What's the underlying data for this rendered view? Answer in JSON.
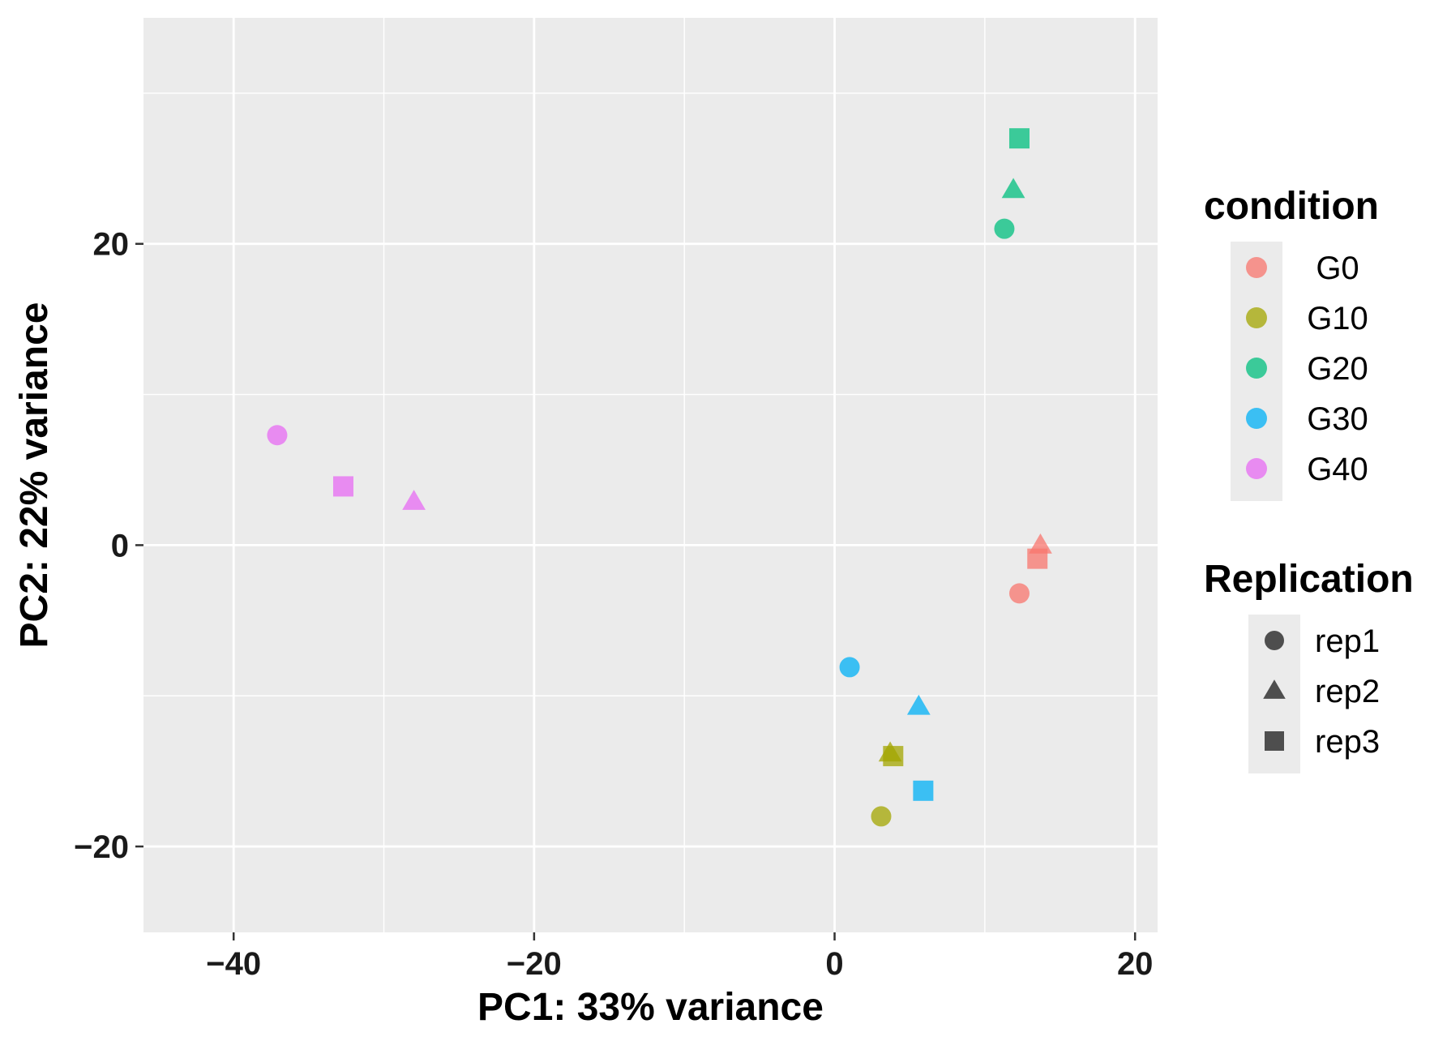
{
  "chart_data": {
    "type": "scatter",
    "title": "",
    "xlabel": "PC1: 33% variance",
    "ylabel": "PC2: 22% variance",
    "xlim": [
      -46,
      21.5
    ],
    "ylim": [
      -25.7,
      35
    ],
    "x_major_ticks": [
      -40,
      -20,
      0,
      20
    ],
    "x_minor_ticks": [
      -30,
      -10,
      10
    ],
    "y_major_ticks": [
      -20,
      0,
      20
    ],
    "y_minor_ticks": [
      -10,
      10,
      30
    ],
    "x_tick_labels": [
      "−40",
      "−20",
      "0",
      "20"
    ],
    "y_tick_labels": [
      "−20",
      "0",
      "20"
    ],
    "grid": true,
    "legend_position": "right",
    "point_alpha": 0.75,
    "conditions": [
      {
        "name": "G0",
        "label": "G0",
        "color": "#F8766D"
      },
      {
        "name": "G10",
        "label": "G10",
        "color": "#A3A500"
      },
      {
        "name": "G20",
        "label": "G20",
        "color": "#00BF7D"
      },
      {
        "name": "G30",
        "label": "G30",
        "color": "#00B0F6"
      },
      {
        "name": "G40",
        "label": "G40",
        "color": "#E76BF3"
      }
    ],
    "replications": [
      {
        "name": "rep1",
        "label": "rep1",
        "shape": "circle"
      },
      {
        "name": "rep2",
        "label": "rep2",
        "shape": "triangle"
      },
      {
        "name": "rep3",
        "label": "rep3",
        "shape": "square"
      }
    ],
    "legend": {
      "condition_title": "condition",
      "replication_title": "Replication"
    },
    "points": [
      {
        "x": 12.3,
        "y": -3.2,
        "condition": "G0",
        "rep": "rep1"
      },
      {
        "x": 13.7,
        "y": 0.0,
        "condition": "G0",
        "rep": "rep2"
      },
      {
        "x": 13.5,
        "y": -0.9,
        "condition": "G0",
        "rep": "rep3"
      },
      {
        "x": 3.1,
        "y": -18.0,
        "condition": "G10",
        "rep": "rep1"
      },
      {
        "x": 3.7,
        "y": -13.8,
        "condition": "G10",
        "rep": "rep2"
      },
      {
        "x": 3.9,
        "y": -14.0,
        "condition": "G10",
        "rep": "rep3"
      },
      {
        "x": 11.3,
        "y": 21.0,
        "condition": "G20",
        "rep": "rep1"
      },
      {
        "x": 11.9,
        "y": 23.6,
        "condition": "G20",
        "rep": "rep2"
      },
      {
        "x": 12.3,
        "y": 27.0,
        "condition": "G20",
        "rep": "rep3"
      },
      {
        "x": 1.0,
        "y": -8.1,
        "condition": "G30",
        "rep": "rep1"
      },
      {
        "x": 5.6,
        "y": -10.7,
        "condition": "G30",
        "rep": "rep2"
      },
      {
        "x": 5.9,
        "y": -16.3,
        "condition": "G30",
        "rep": "rep3"
      },
      {
        "x": -37.1,
        "y": 7.3,
        "condition": "G40",
        "rep": "rep1"
      },
      {
        "x": -28.0,
        "y": 2.9,
        "condition": "G40",
        "rep": "rep2"
      },
      {
        "x": -32.7,
        "y": 3.9,
        "condition": "G40",
        "rep": "rep3"
      }
    ]
  }
}
